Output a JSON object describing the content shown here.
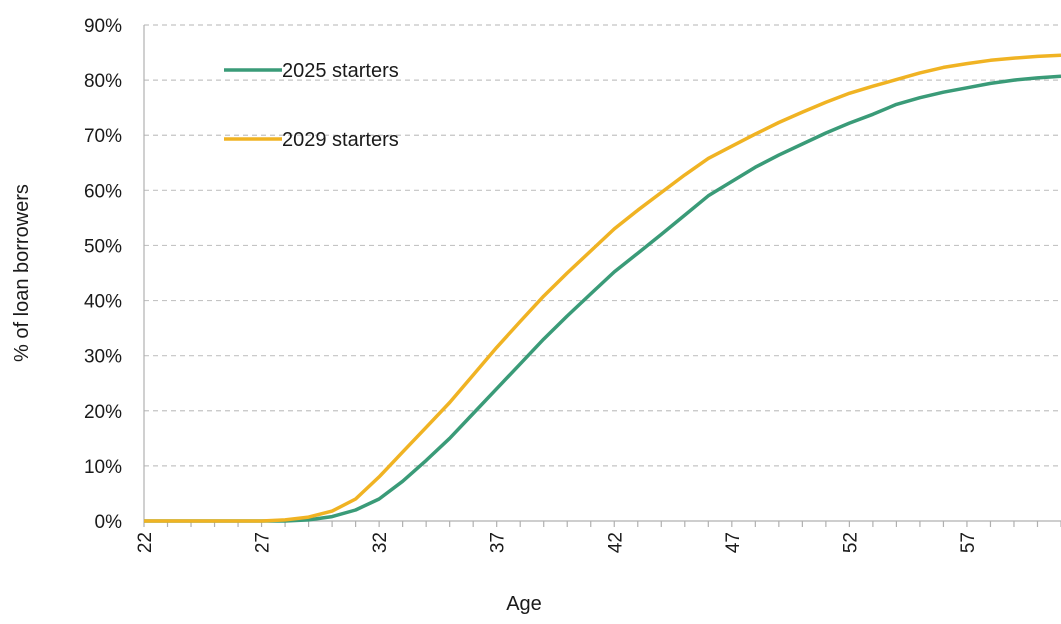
{
  "chart_data": {
    "type": "line",
    "xlabel": "Age",
    "ylabel": "% of loan borrowers",
    "xlim": [
      22,
      61
    ],
    "ylim": [
      0,
      90
    ],
    "x_tick_labels": [
      "22",
      "27",
      "32",
      "37",
      "42",
      "47",
      "52",
      "57"
    ],
    "y_tick_labels": [
      "0%",
      "10%",
      "20%",
      "30%",
      "40%",
      "50%",
      "60%",
      "70%",
      "80%",
      "90%"
    ],
    "grid": "horizontal dashed",
    "legend_position": "top-left",
    "x": [
      22,
      23,
      24,
      25,
      26,
      27,
      28,
      29,
      30,
      31,
      32,
      33,
      34,
      35,
      36,
      37,
      38,
      39,
      40,
      41,
      42,
      43,
      44,
      45,
      46,
      47,
      48,
      49,
      50,
      51,
      52,
      53,
      54,
      55,
      56,
      57,
      58,
      59,
      60,
      61
    ],
    "series": [
      {
        "name": "2025 starters",
        "color": "#3a9b78",
        "values": [
          0,
          0,
          0,
          0,
          0,
          0,
          0,
          0.2,
          0.8,
          2,
          4,
          7.2,
          11,
          15,
          19.5,
          24,
          28.5,
          33,
          37.2,
          41.2,
          45.2,
          48.6,
          52,
          55.5,
          59,
          61.6,
          64.2,
          66.4,
          68.4,
          70.4,
          72.2,
          73.8,
          75.6,
          76.8,
          77.8,
          78.6,
          79.4,
          80,
          80.4,
          80.7
        ]
      },
      {
        "name": "2029 starters",
        "color": "#f0b323",
        "values": [
          0,
          0,
          0,
          0,
          0,
          0,
          0.2,
          0.7,
          1.8,
          4,
          8,
          12.5,
          17,
          21.5,
          26.5,
          31.5,
          36.2,
          40.8,
          45,
          49,
          53,
          56.4,
          59.6,
          62.8,
          65.8,
          68,
          70.2,
          72.3,
          74.2,
          76,
          77.6,
          78.9,
          80.1,
          81.3,
          82.3,
          83,
          83.6,
          84,
          84.3,
          84.5
        ]
      }
    ]
  }
}
